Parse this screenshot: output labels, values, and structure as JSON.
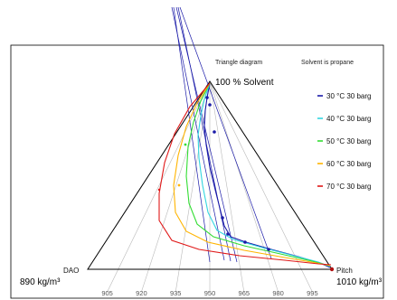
{
  "chart_data": {
    "type": "line",
    "title": "Triangle diagram",
    "subtitle": "Solvent is propane",
    "corners": {
      "top": "100 % Solvent",
      "left_name": "DAO",
      "left_value": "890 kg/m³",
      "right_name": "Pitch",
      "right_value": "1010 kg/m³"
    },
    "density_ticks": [
      905,
      920,
      935,
      950,
      965,
      980,
      995
    ],
    "density_range": [
      890,
      1010
    ],
    "legend_position": "right",
    "series": [
      {
        "name": "30 °C 30 barg",
        "color": "#1a1aa8"
      },
      {
        "name": "40 °C 30 barg",
        "color": "#33d6e0"
      },
      {
        "name": "50 °C 30 barg",
        "color": "#33dd33"
      },
      {
        "name": "60 °C 30 barg",
        "color": "#ffb400"
      },
      {
        "name": "70 °C 30 barg",
        "color": "#e01818"
      }
    ]
  }
}
